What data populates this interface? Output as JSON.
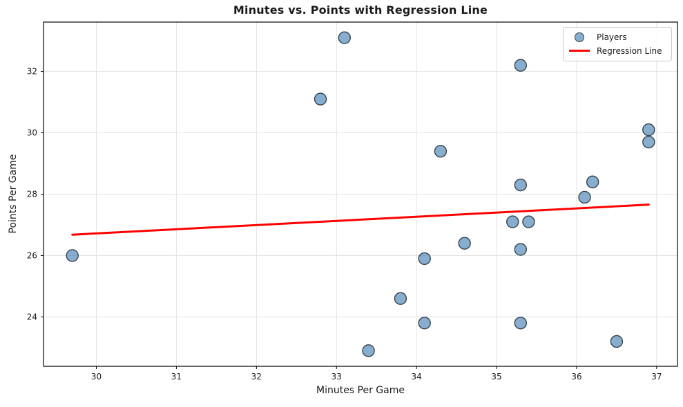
{
  "window": {
    "title": "Minutes vs. Points with Regression Line"
  },
  "chart_data": {
    "type": "scatter",
    "title": "Minutes vs. Points with Regression Line",
    "xlabel": "Minutes Per Game",
    "ylabel": "Points Per Game",
    "xlim": [
      29.34,
      37.26
    ],
    "ylim": [
      22.39,
      33.61
    ],
    "xticks": [
      30,
      31,
      32,
      33,
      34,
      35,
      36,
      37
    ],
    "yticks": [
      24,
      26,
      28,
      30,
      32
    ],
    "grid": true,
    "legend_position": "upper-right",
    "series": [
      {
        "name": "Players",
        "type": "scatter",
        "marker": "circle",
        "marker_radius": 8.5,
        "fill_color": "#4682b4",
        "fill_opacity": 0.65,
        "edge_color": "#37424c",
        "points": [
          [
            29.7,
            26.0
          ],
          [
            32.8,
            31.1
          ],
          [
            33.1,
            33.1
          ],
          [
            33.4,
            22.9
          ],
          [
            33.8,
            24.6
          ],
          [
            34.1,
            25.9
          ],
          [
            34.1,
            23.8
          ],
          [
            34.3,
            29.4
          ],
          [
            34.6,
            26.4
          ],
          [
            35.2,
            27.1
          ],
          [
            35.3,
            32.2
          ],
          [
            35.3,
            28.3
          ],
          [
            35.3,
            26.2
          ],
          [
            35.3,
            23.8
          ],
          [
            35.4,
            27.1
          ],
          [
            36.1,
            27.9
          ],
          [
            36.2,
            28.4
          ],
          [
            36.5,
            23.2
          ],
          [
            36.9,
            30.1
          ],
          [
            36.9,
            29.7
          ]
        ]
      },
      {
        "name": "Regression Line",
        "type": "line",
        "color": "#ff0000",
        "line_width": 3,
        "x": [
          29.7,
          36.9
        ],
        "y": [
          26.68,
          27.66
        ]
      }
    ]
  },
  "colors": {
    "background": "#ffffff",
    "grid": "#e3e3e3",
    "axis": "#000000",
    "tick_text": "#1a1a1a"
  }
}
